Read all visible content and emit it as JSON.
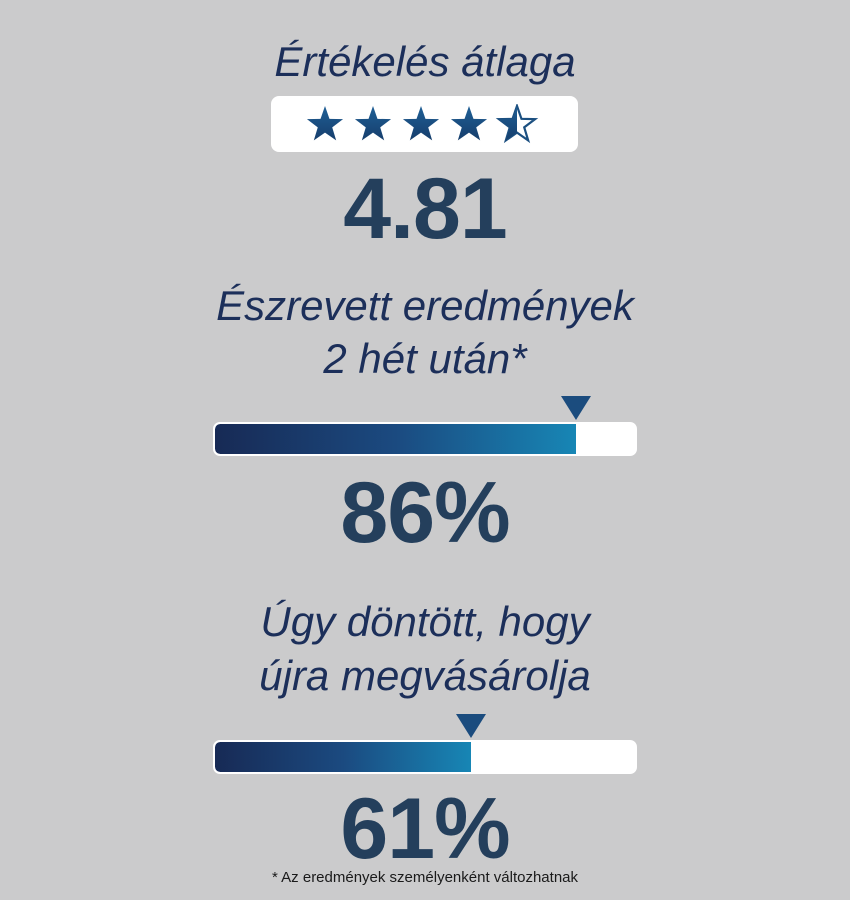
{
  "rating": {
    "title": "Értékelés átlaga",
    "value": "4.81",
    "stars": 4.5,
    "star_color": "#1b4f80"
  },
  "results": {
    "title_line1": "Észrevett eredmények",
    "title_line2": "2 hét után*",
    "percent_label": "86%",
    "percent": 86
  },
  "repurchase": {
    "title_line1": "Úgy döntött, hogy",
    "title_line2": "újra megvásárolja",
    "percent_label": "61%",
    "percent": 61
  },
  "footnote": "* Az eredmények személyenként változhatnak",
  "colors": {
    "background": "#cbcbcc",
    "heading": "#1c2f5a",
    "number": "#243f5c",
    "bar_start": "#172a55",
    "bar_end": "#1786b5"
  }
}
